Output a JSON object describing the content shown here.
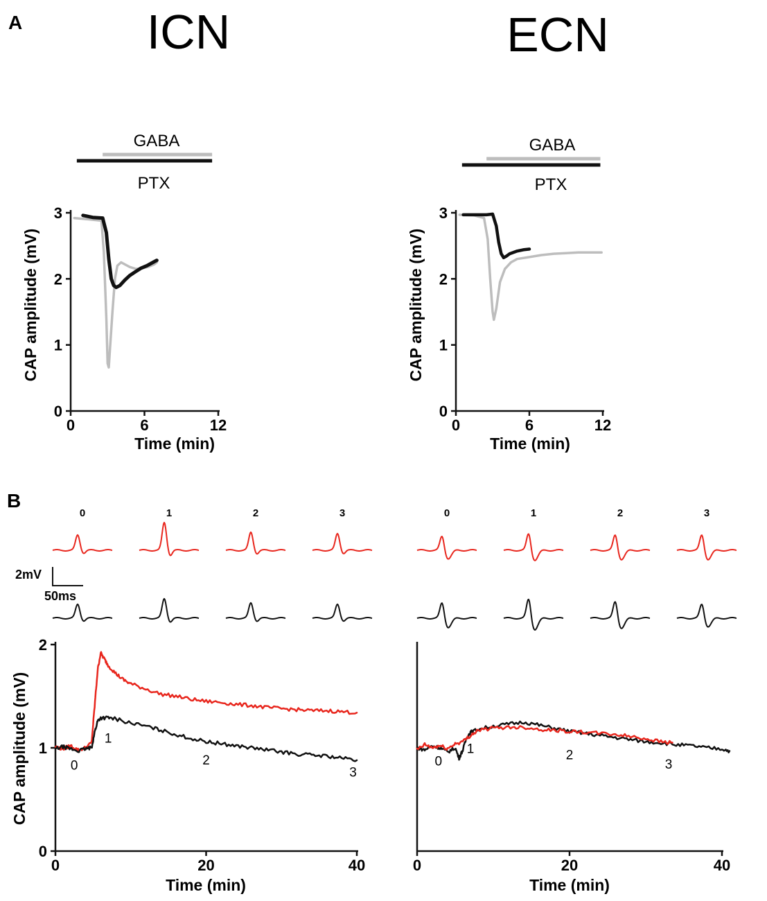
{
  "panels": {
    "a": "A",
    "b": "B"
  },
  "colors": {
    "red": "#e8261d",
    "black": "#111111",
    "gray": "#bdbdbd"
  },
  "chart_data": [
    {
      "id": "a-icn",
      "type": "line",
      "title": "ICN",
      "xlabel": "Time (min)",
      "ylabel": "CAP amplitude (mV)",
      "xlim": [
        0,
        12
      ],
      "ylim": [
        0,
        3
      ],
      "xticks": [
        0,
        6,
        12
      ],
      "yticks": [
        0,
        1,
        2,
        3
      ],
      "bars": [
        {
          "label": "GABA",
          "color": "gray",
          "start": 2.6,
          "end": 11.5
        },
        {
          "label": "PTX",
          "color": "black",
          "start": 0.5,
          "end": 11.5
        }
      ],
      "series": [
        {
          "name": "GABA",
          "color": "gray",
          "x": [
            0.3,
            1.5,
            2.5,
            2.7,
            2.9,
            3.0,
            3.1,
            3.2,
            3.4,
            3.6,
            3.8,
            4.1,
            4.4,
            4.8,
            5.3,
            5.8,
            6.3,
            6.8,
            7.0
          ],
          "y": [
            2.92,
            2.9,
            2.88,
            2.4,
            1.4,
            0.72,
            0.66,
            0.95,
            1.5,
            2.0,
            2.2,
            2.25,
            2.22,
            2.18,
            2.15,
            2.16,
            2.18,
            2.22,
            2.25
          ]
        },
        {
          "name": "GABA + PTX",
          "color": "black",
          "x": [
            1.0,
            1.8,
            2.6,
            2.9,
            3.1,
            3.3,
            3.5,
            3.7,
            4.0,
            4.4,
            4.8,
            5.2,
            5.7,
            6.2,
            6.7,
            7.0
          ],
          "y": [
            2.96,
            2.93,
            2.92,
            2.7,
            2.3,
            2.0,
            1.9,
            1.87,
            1.9,
            1.98,
            2.05,
            2.1,
            2.16,
            2.2,
            2.25,
            2.28
          ]
        }
      ]
    },
    {
      "id": "a-ecn",
      "type": "line",
      "title": "ECN",
      "xlabel": "Time (min)",
      "ylabel": "CAP amplitude (mV)",
      "xlim": [
        0,
        12
      ],
      "ylim": [
        0,
        3
      ],
      "xticks": [
        0,
        6,
        12
      ],
      "yticks": [
        0,
        1,
        2,
        3
      ],
      "bars": [
        {
          "label": "GABA",
          "color": "gray",
          "start": 2.5,
          "end": 11.8
        },
        {
          "label": "PTX",
          "color": "black",
          "start": 0.5,
          "end": 11.8
        }
      ],
      "series": [
        {
          "name": "GABA",
          "color": "gray",
          "x": [
            0.3,
            1.5,
            2.3,
            2.6,
            2.8,
            3.0,
            3.1,
            3.3,
            3.6,
            4.0,
            4.5,
            5.0,
            6.0,
            7.0,
            8.0,
            9.0,
            10.0,
            11.0,
            11.9
          ],
          "y": [
            2.97,
            2.96,
            2.92,
            2.6,
            2.0,
            1.5,
            1.38,
            1.55,
            1.95,
            2.15,
            2.25,
            2.3,
            2.33,
            2.36,
            2.38,
            2.39,
            2.4,
            2.4,
            2.4
          ]
        },
        {
          "name": "GABA + PTX",
          "color": "black",
          "x": [
            0.6,
            1.5,
            2.5,
            3.0,
            3.3,
            3.5,
            3.7,
            3.9,
            4.1,
            4.4,
            5.0,
            5.5,
            6.0
          ],
          "y": [
            2.97,
            2.97,
            2.97,
            2.98,
            2.8,
            2.55,
            2.38,
            2.32,
            2.34,
            2.38,
            2.42,
            2.44,
            2.45
          ]
        }
      ]
    },
    {
      "id": "b-icn",
      "type": "line",
      "title": "",
      "xlabel": "Time (min)",
      "ylabel": "CAP amplitude (mV)",
      "xlim": [
        0,
        40
      ],
      "ylim": [
        0,
        2
      ],
      "xticks": [
        0,
        20,
        40
      ],
      "yticks": [
        0,
        1,
        2
      ],
      "annotations": [
        {
          "label": "0",
          "x": 2.5,
          "y": 0.79
        },
        {
          "label": "1",
          "x": 7.0,
          "y": 1.05
        },
        {
          "label": "2",
          "x": 20.0,
          "y": 0.84
        },
        {
          "label": "3",
          "x": 39.5,
          "y": 0.72
        }
      ],
      "series": [
        {
          "name": "red",
          "color": "red",
          "x": [
            0,
            1,
            2,
            3,
            4,
            4.8,
            5.2,
            5.6,
            6.0,
            6.5,
            7.0,
            8.0,
            9.0,
            10.0,
            12.0,
            14.0,
            16.0,
            18.0,
            20.0,
            22.0,
            24.0,
            26.0,
            28.0,
            30.0,
            32.0,
            34.0,
            36.0,
            38.0,
            40.0
          ],
          "y": [
            1.01,
            0.99,
            1.02,
            0.98,
            1.0,
            1.05,
            1.4,
            1.75,
            1.92,
            1.86,
            1.8,
            1.72,
            1.66,
            1.62,
            1.57,
            1.52,
            1.5,
            1.47,
            1.45,
            1.44,
            1.42,
            1.41,
            1.39,
            1.38,
            1.37,
            1.36,
            1.36,
            1.35,
            1.34
          ]
        },
        {
          "name": "black",
          "color": "black",
          "x": [
            0,
            1,
            2,
            3,
            4,
            4.8,
            5.2,
            5.6,
            6.0,
            7.0,
            8.0,
            10.0,
            12.0,
            14.0,
            16.0,
            18.0,
            20.0,
            22.0,
            24.0,
            26.0,
            28.0,
            30.0,
            32.0,
            34.0,
            36.0,
            38.0,
            40.0
          ],
          "y": [
            0.99,
            1.01,
            0.99,
            0.97,
            0.99,
            1.0,
            1.15,
            1.26,
            1.29,
            1.29,
            1.28,
            1.24,
            1.21,
            1.17,
            1.13,
            1.09,
            1.06,
            1.04,
            1.02,
            1.0,
            0.98,
            0.96,
            0.94,
            0.93,
            0.92,
            0.9,
            0.88
          ]
        }
      ],
      "traces": {
        "labels": [
          "0",
          "1",
          "2",
          "3"
        ],
        "red_amp": [
          22,
          40,
          26,
          24
        ],
        "black_amp": [
          20,
          28,
          22,
          20
        ]
      }
    },
    {
      "id": "b-ecn",
      "type": "line",
      "title": "",
      "xlabel": "Time (min)",
      "ylabel": "",
      "xlim": [
        0,
        40
      ],
      "ylim": [
        0,
        2
      ],
      "xticks": [
        0,
        20,
        40
      ],
      "yticks": [],
      "annotations": [
        {
          "label": "0",
          "x": 2.8,
          "y": 0.83
        },
        {
          "label": "1",
          "x": 7.0,
          "y": 0.95
        },
        {
          "label": "2",
          "x": 20.0,
          "y": 0.89
        },
        {
          "label": "3",
          "x": 33.0,
          "y": 0.8
        }
      ],
      "series": [
        {
          "name": "black",
          "color": "black",
          "x": [
            0,
            1,
            2,
            3,
            4,
            5,
            5.5,
            6.0,
            6.5,
            7.0,
            8.0,
            10.0,
            12.0,
            14.0,
            16.0,
            18.0,
            20.0,
            22.0,
            24.0,
            26.0,
            28.0,
            30.0,
            32.0,
            34.0,
            36.0,
            38.0,
            40.0,
            41.0
          ],
          "y": [
            1.0,
            0.98,
            1.02,
            1.0,
            0.96,
            1.0,
            0.9,
            0.98,
            1.1,
            1.15,
            1.18,
            1.21,
            1.23,
            1.25,
            1.22,
            1.19,
            1.16,
            1.14,
            1.12,
            1.1,
            1.08,
            1.06,
            1.05,
            1.03,
            1.02,
            1.0,
            0.99,
            0.97
          ]
        },
        {
          "name": "red",
          "color": "red",
          "x": [
            0,
            1,
            2,
            3,
            4,
            5,
            6,
            7,
            8,
            10,
            12,
            14,
            16,
            18,
            20,
            22,
            24,
            26,
            28,
            30,
            32,
            33.5
          ],
          "y": [
            0.98,
            1.03,
            1.0,
            1.02,
            0.99,
            1.04,
            1.06,
            1.12,
            1.17,
            1.19,
            1.2,
            1.2,
            1.18,
            1.17,
            1.16,
            1.15,
            1.14,
            1.13,
            1.11,
            1.09,
            1.06,
            1.05
          ]
        }
      ],
      "traces": {
        "labels": [
          "0",
          "1",
          "2",
          "3"
        ],
        "red_amp": [
          22,
          26,
          24,
          24
        ],
        "black_amp": [
          24,
          30,
          26,
          22
        ]
      }
    }
  ],
  "scale_bar": {
    "y_label": "2mV",
    "x_label": "50ms"
  }
}
